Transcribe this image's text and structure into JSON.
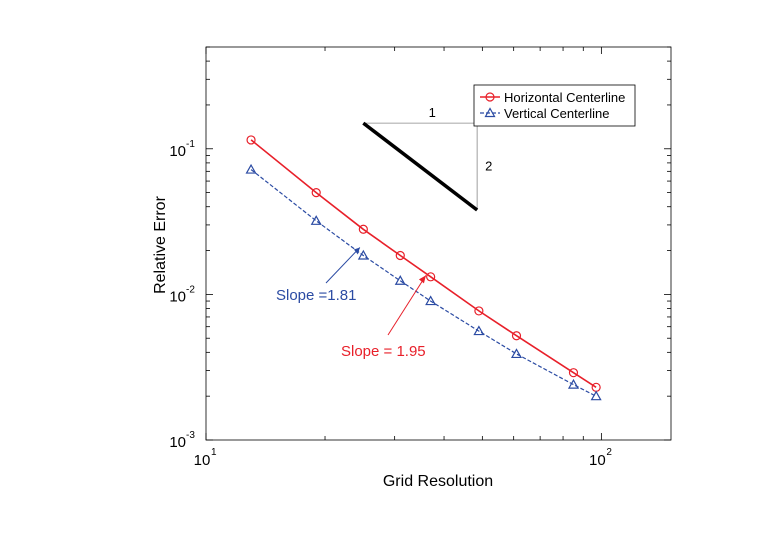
{
  "chart_data": {
    "type": "line",
    "xscale": "log",
    "yscale": "log",
    "xlabel": "Grid Resolution",
    "ylabel": "Relative Error",
    "xlim": [
      10,
      150
    ],
    "ylim": [
      0.001,
      0.5
    ],
    "x_tick_labels": [
      {
        "value": 10,
        "base": "10",
        "exp": "1"
      },
      {
        "value": 100,
        "base": "10",
        "exp": "2"
      }
    ],
    "y_tick_labels": [
      {
        "value": 0.001,
        "base": "10",
        "exp": "-3"
      },
      {
        "value": 0.01,
        "base": "10",
        "exp": "-2"
      },
      {
        "value": 0.1,
        "base": "10",
        "exp": "-1"
      }
    ],
    "series": [
      {
        "name": "Horizontal Centerline",
        "color": "#e8202a",
        "marker": "circle",
        "linestyle": "solid",
        "x": [
          13,
          19,
          25,
          31,
          37,
          49,
          61,
          85,
          97
        ],
        "y": [
          0.115,
          0.05,
          0.028,
          0.0185,
          0.0132,
          0.0077,
          0.0052,
          0.0029,
          0.0023
        ]
      },
      {
        "name": "Vertical Centerline",
        "color": "#2b4ba3",
        "marker": "triangle",
        "linestyle": "dashed",
        "x": [
          13,
          19,
          25,
          31,
          37,
          49,
          61,
          85,
          97
        ],
        "y": [
          0.072,
          0.032,
          0.0185,
          0.0124,
          0.009,
          0.0056,
          0.0039,
          0.0024,
          0.002
        ]
      }
    ],
    "legend": {
      "position": "top-right",
      "entries": [
        "Horizontal Centerline",
        "Vertical Centerline"
      ]
    },
    "annotations": [
      {
        "text": "Slope =1.81",
        "color": "#2b4ba3",
        "arrow_to_x": 24.5,
        "arrow_to_y": 0.021
      },
      {
        "text": "Slope = 1.95",
        "color": "#e8202a",
        "arrow_to_x": 36,
        "arrow_to_y": 0.0135
      }
    ],
    "slope_triangle": {
      "run_label": "1",
      "rise_label": "2",
      "line_start": {
        "x": 25,
        "y": 0.15
      },
      "line_end": {
        "x": 48.5,
        "y": 0.038
      }
    }
  }
}
